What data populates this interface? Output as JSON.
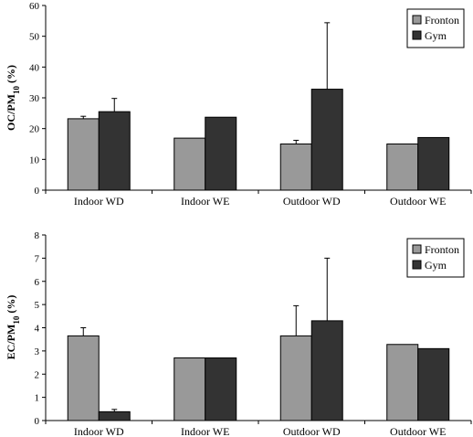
{
  "chart_data": [
    {
      "type": "bar",
      "categories": [
        "Indoor WD",
        "Indoor WE",
        "Outdoor WD",
        "Outdoor WE"
      ],
      "ylabel_main": "OC/PM",
      "ylabel_sub": "10",
      "ylabel_unit": " (%)",
      "ylim": [
        0,
        60
      ],
      "ytick_step": 10,
      "legend_position": "top-right",
      "colors": [
        "#999999",
        "#333333"
      ],
      "series": [
        {
          "name": "Fronton",
          "values": [
            23.2,
            16.9,
            15.0,
            15.0
          ],
          "errors": [
            0.8,
            null,
            1.2,
            null
          ]
        },
        {
          "name": "Gym",
          "values": [
            25.5,
            23.7,
            32.8,
            17.1
          ],
          "errors": [
            4.3,
            null,
            21.6,
            null
          ]
        }
      ]
    },
    {
      "type": "bar",
      "categories": [
        "Indoor WD",
        "Indoor WE",
        "Outdoor WD",
        "Outdoor WE"
      ],
      "ylabel_main": "EC/PM",
      "ylabel_sub": "10",
      "ylabel_unit": " (%)",
      "ylim": [
        0,
        8
      ],
      "ytick_step": 1,
      "legend_position": "top-right",
      "colors": [
        "#999999",
        "#333333"
      ],
      "series": [
        {
          "name": "Fronton",
          "values": [
            3.65,
            2.7,
            3.65,
            3.28
          ],
          "errors": [
            0.35,
            null,
            1.3,
            null
          ]
        },
        {
          "name": "Gym",
          "values": [
            0.38,
            2.7,
            4.3,
            3.1
          ],
          "errors": [
            0.1,
            null,
            2.7,
            null
          ]
        }
      ]
    }
  ]
}
